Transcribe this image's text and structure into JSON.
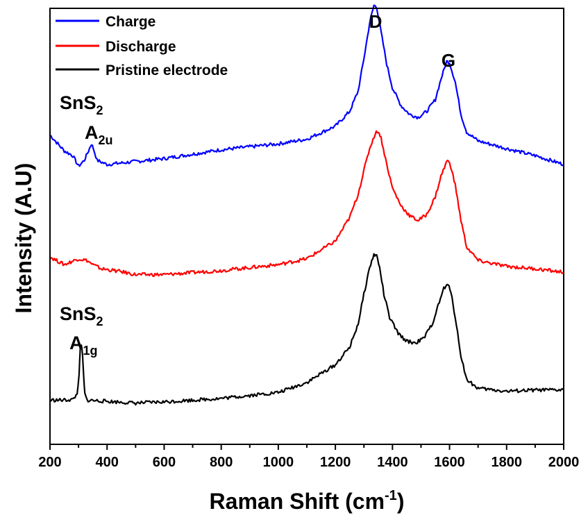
{
  "chart_data": {
    "type": "line",
    "xlabel_main": "Raman Shift (cm",
    "xlabel_sup": "-1",
    "xlabel_end": ")",
    "ylabel": "Intensity (A.U)",
    "xlim": [
      200,
      2000
    ],
    "ylim": [
      -0.6,
      6.8
    ],
    "yticks_shown": false,
    "x_ticks": [
      "200",
      "400",
      "600",
      "800",
      "1000",
      "1200",
      "1400",
      "1600",
      "1800",
      "2000"
    ],
    "legend_position": "top-left",
    "series": [
      {
        "name": "Charge",
        "color": "#0000ff",
        "x": [
          200,
          250,
          280,
          300,
          320,
          335,
          345,
          352,
          365,
          400,
          500,
          600,
          800,
          1000,
          1100,
          1200,
          1250,
          1280,
          1300,
          1320,
          1335,
          1345,
          1360,
          1380,
          1400,
          1430,
          1460,
          1490,
          1520,
          1550,
          1570,
          1590,
          1600,
          1620,
          1640,
          1660,
          1700,
          1800,
          1900,
          2000
        ],
        "y": [
          4.65,
          4.38,
          4.3,
          4.12,
          4.22,
          4.38,
          4.5,
          4.42,
          4.22,
          4.15,
          4.2,
          4.25,
          4.4,
          4.5,
          4.58,
          4.8,
          5.05,
          5.4,
          5.95,
          6.55,
          6.85,
          6.82,
          6.4,
          5.85,
          5.45,
          5.15,
          5.0,
          4.95,
          5.05,
          5.25,
          5.6,
          5.9,
          5.88,
          5.55,
          5.0,
          4.7,
          4.55,
          4.42,
          4.3,
          4.15
        ]
      },
      {
        "name": "Discharge",
        "color": "#ff0000",
        "x": [
          200,
          250,
          300,
          330,
          350,
          380,
          450,
          500,
          600,
          800,
          1000,
          1100,
          1200,
          1250,
          1280,
          1300,
          1320,
          1340,
          1350,
          1360,
          1380,
          1400,
          1430,
          1460,
          1490,
          1520,
          1550,
          1570,
          1590,
          1600,
          1620,
          1640,
          1660,
          1700,
          1800,
          1900,
          2000
        ],
        "y": [
          2.58,
          2.45,
          2.55,
          2.52,
          2.45,
          2.38,
          2.33,
          2.28,
          2.28,
          2.35,
          2.45,
          2.55,
          2.85,
          3.25,
          3.65,
          4.05,
          4.42,
          4.68,
          4.72,
          4.6,
          4.15,
          3.75,
          3.45,
          3.28,
          3.2,
          3.3,
          3.6,
          3.95,
          4.2,
          4.2,
          3.8,
          3.2,
          2.75,
          2.52,
          2.42,
          2.38,
          2.32
        ]
      },
      {
        "name": "Pristine electrode",
        "color": "#000000",
        "x": [
          200,
          250,
          280,
          295,
          302,
          306,
          310,
          314,
          318,
          322,
          330,
          400,
          500,
          600,
          800,
          1000,
          1100,
          1200,
          1250,
          1280,
          1300,
          1320,
          1335,
          1345,
          1355,
          1370,
          1390,
          1420,
          1450,
          1480,
          1510,
          1540,
          1560,
          1580,
          1595,
          1605,
          1620,
          1640,
          1660,
          1700,
          1800,
          1900,
          2000
        ],
        "y": [
          0.15,
          0.15,
          0.16,
          0.25,
          0.6,
          1.0,
          1.1,
          0.9,
          0.55,
          0.25,
          0.15,
          0.13,
          0.1,
          0.12,
          0.18,
          0.28,
          0.45,
          0.75,
          1.05,
          1.45,
          1.95,
          2.4,
          2.62,
          2.6,
          2.4,
          1.95,
          1.55,
          1.28,
          1.15,
          1.12,
          1.2,
          1.45,
          1.75,
          2.05,
          2.1,
          2.0,
          1.55,
          0.9,
          0.5,
          0.35,
          0.3,
          0.32,
          0.32
        ]
      }
    ],
    "annotations": {
      "d_peak": "D",
      "g_peak": "G",
      "sns2_top": "SnS",
      "sns2_top_sub": "2",
      "a2u_main": "A",
      "a2u_sub": "2u",
      "sns2_bottom": "SnS",
      "sns2_bottom_sub": "2",
      "a1g_main": "A",
      "a1g_sub": "1g"
    }
  }
}
